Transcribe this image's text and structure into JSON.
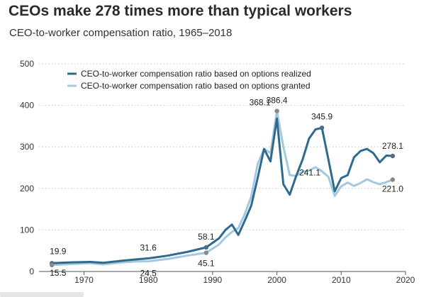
{
  "title": "CEOs make 278 times more than typical workers",
  "subtitle": "CEO-to-worker compensation ratio, 1965–2018",
  "chart_data": {
    "type": "line",
    "xlim": [
      1963,
      2020
    ],
    "ylim": [
      0,
      500
    ],
    "xticks": [
      1970,
      1980,
      1990,
      2000,
      2010,
      2020
    ],
    "yticks": [
      0,
      100,
      200,
      300,
      400,
      500
    ],
    "grid": true,
    "legend_position": "top-left",
    "series": [
      {
        "name": "CEO-to-worker compensation ratio based on options realized",
        "color": "#2e6a8c",
        "x": [
          1965,
          1968,
          1971,
          1973,
          1976,
          1978,
          1980,
          1983,
          1986,
          1989,
          1991,
          1992,
          1993,
          1994,
          1995,
          1996,
          1997,
          1998,
          1999,
          2000,
          2001,
          2002,
          2003,
          2004,
          2005,
          2006,
          2007,
          2008,
          2009,
          2010,
          2011,
          2012,
          2013,
          2014,
          2015,
          2016,
          2017,
          2018
        ],
        "y": [
          19.9,
          22,
          23,
          21,
          26,
          29,
          31.6,
          38,
          47,
          58.1,
          80,
          100,
          113,
          88,
          122,
          158,
          225,
          295,
          265,
          368.1,
          210,
          185,
          230,
          270,
          320,
          342,
          345.9,
          270,
          193,
          225,
          232,
          275,
          290,
          295,
          285,
          263,
          279,
          278.1
        ]
      },
      {
        "name": "CEO-to-worker compensation ratio based on options granted",
        "color": "#a3c8e0",
        "x": [
          1965,
          1968,
          1971,
          1973,
          1976,
          1978,
          1980,
          1983,
          1986,
          1989,
          1991,
          1992,
          1993,
          1994,
          1995,
          1996,
          1997,
          1998,
          1999,
          2000,
          2001,
          2002,
          2003,
          2004,
          2005,
          2006,
          2007,
          2008,
          2009,
          2010,
          2011,
          2012,
          2013,
          2014,
          2015,
          2016,
          2017,
          2018
        ],
        "y": [
          15.5,
          18,
          20,
          17,
          22,
          24,
          24.5,
          30,
          38,
          45.1,
          65,
          82,
          95,
          105,
          138,
          180,
          258,
          295,
          285,
          386.4,
          300,
          232,
          230,
          240,
          243,
          251,
          241.1,
          228,
          182,
          205,
          214,
          206,
          213,
          222,
          215,
          210,
          215,
          221.0
        ]
      }
    ],
    "annotations": [
      {
        "series": 0,
        "x": 1965,
        "y": 19.9,
        "label": "19.9",
        "dot": true
      },
      {
        "series": 1,
        "x": 1965,
        "y": 15.5,
        "label": "15.5",
        "dot": true
      },
      {
        "series": 0,
        "x": 1980,
        "y": 31.6,
        "label": "31.6",
        "dot": false
      },
      {
        "series": 1,
        "x": 1980,
        "y": 24.5,
        "label": "24.5",
        "dot": false
      },
      {
        "series": 0,
        "x": 1989,
        "y": 58.1,
        "label": "58.1",
        "dot": true
      },
      {
        "series": 1,
        "x": 1989,
        "y": 45.1,
        "label": "45.1",
        "dot": true
      },
      {
        "series": 0,
        "x": 2000,
        "y": 368.1,
        "label": "368.1",
        "dot": false
      },
      {
        "series": 1,
        "x": 2000,
        "y": 386.4,
        "label": "386.4",
        "dot": true
      },
      {
        "series": 0,
        "x": 2007,
        "y": 345.9,
        "label": "345.9",
        "dot": true
      },
      {
        "series": 1,
        "x": 2007,
        "y": 241.1,
        "label": "241.1",
        "dot": false
      },
      {
        "series": 0,
        "x": 2018,
        "y": 278.1,
        "label": "278.1",
        "dot": true
      },
      {
        "series": 1,
        "x": 2018,
        "y": 221.0,
        "label": "221.0",
        "dot": true
      }
    ]
  }
}
